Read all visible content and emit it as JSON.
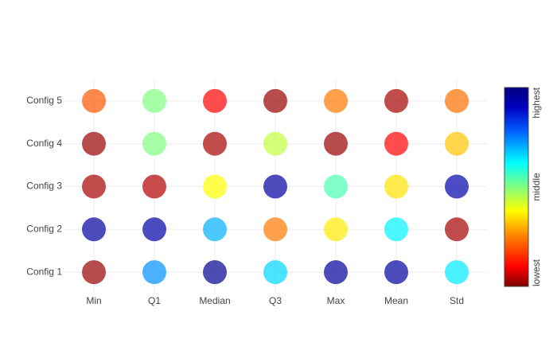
{
  "chart_data": {
    "type": "bubble",
    "x_categories": [
      "Min",
      "Q1",
      "Median",
      "Q3",
      "Max",
      "Mean",
      "Std"
    ],
    "y_categories": [
      "Config 1",
      "Config 2",
      "Config 3",
      "Config 4",
      "Config 5"
    ],
    "values": [
      [
        0.02,
        0.73,
        0.97,
        0.66,
        0.96,
        0.95,
        0.64
      ],
      [
        0.95,
        0.94,
        0.7,
        0.24,
        0.36,
        0.63,
        0.03
      ],
      [
        0.03,
        0.04,
        0.38,
        0.95,
        0.55,
        0.35,
        0.93
      ],
      [
        0.02,
        0.5,
        0.03,
        0.44,
        0.02,
        0.1,
        0.32
      ],
      [
        0.2,
        0.5,
        0.1,
        0.02,
        0.24,
        0.03,
        0.23
      ]
    ],
    "colorscale": [
      [
        0,
        "#7f0000"
      ],
      [
        0.1,
        "#ff0000"
      ],
      [
        0.25,
        "#ff8000"
      ],
      [
        0.38,
        "#ffff00"
      ],
      [
        0.5,
        "#80ff80"
      ],
      [
        0.62,
        "#00ffff"
      ],
      [
        0.78,
        "#0060ff"
      ],
      [
        0.9,
        "#0000c0"
      ],
      [
        1,
        "#000080"
      ]
    ],
    "clim": [
      0,
      1
    ],
    "colorbar_ticks": [
      {
        "value": 0,
        "label": "lowest"
      },
      {
        "value": 0.5,
        "label": "middle"
      },
      {
        "value": 1,
        "label": "highest"
      }
    ],
    "opacity": 0.7,
    "grid": true
  }
}
